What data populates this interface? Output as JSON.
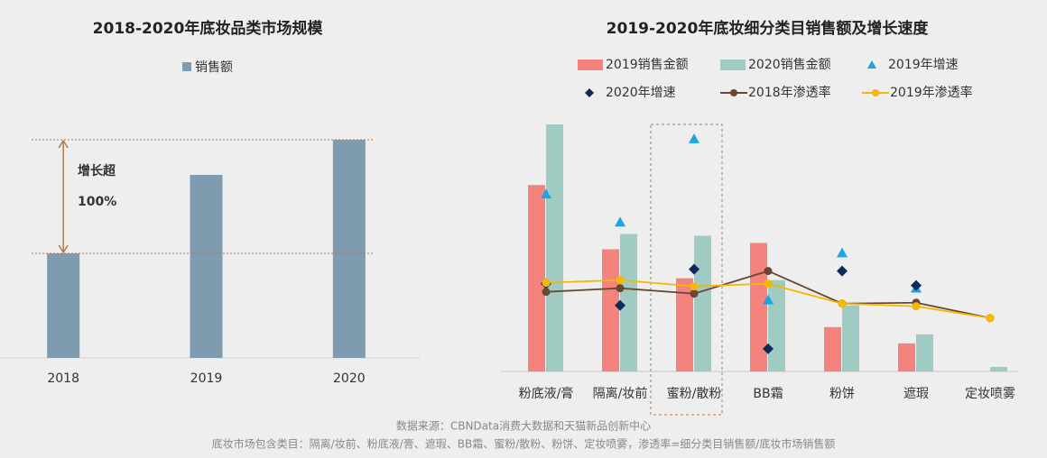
{
  "chart_data": [
    {
      "type": "bar",
      "title": "2018-2020年底妆品类市场规模",
      "categories": [
        "2018",
        "2019",
        "2020"
      ],
      "series": [
        {
          "name": "销售额",
          "color": "#7f9bb0",
          "values": [
            116,
            203,
            242
          ]
        }
      ],
      "ylim": [
        0,
        260
      ],
      "annotation_lines": [
        "增长超",
        "100%"
      ],
      "annotation_colors": [
        "#111111",
        "#b07a4e"
      ]
    },
    {
      "type": "combo",
      "title": "2019-2020年底妆细分类目销售额及增长速度",
      "categories": [
        "粉底液/膏",
        "隔离/妆前",
        "蜜粉/散粉",
        "BB霜",
        "粉饼",
        "遮瑕",
        "定妆喷雾"
      ],
      "series": [
        {
          "name": "2019销售金额",
          "type": "bar",
          "color": "#f4837d",
          "values": [
            206,
            135,
            103,
            142,
            49,
            31,
            null
          ]
        },
        {
          "name": "2020销售金额",
          "type": "bar",
          "color": "#9fcbc3",
          "values": [
            273,
            152,
            150,
            101,
            73,
            41,
            5
          ]
        },
        {
          "name": "2019年增速",
          "type": "scatter",
          "marker": "triangle",
          "color": "#1ea4e0",
          "values": [
            196,
            165,
            257,
            79,
            131,
            92,
            null
          ]
        },
        {
          "name": "2020年增速",
          "type": "scatter",
          "marker": "diamond",
          "color": "#0d2a5c",
          "values": [
            97,
            73,
            113,
            25,
            111,
            95,
            null
          ]
        },
        {
          "name": "2018年渗透率",
          "type": "line",
          "color": "#6b4632",
          "values": [
            88,
            92,
            86,
            111,
            75,
            76,
            59
          ]
        },
        {
          "name": "2019年渗透率",
          "type": "line",
          "color": "#f5b800",
          "values": [
            98,
            101,
            94,
            97,
            75,
            72,
            59
          ]
        }
      ],
      "ylim": [
        0,
        280
      ]
    }
  ],
  "footnotes": [
    "数据来源：CBNData消费大数据和天猫新品创新中心",
    "底妆市场包含类目：隔离/妆前、粉底液/膏、遮瑕、BB霜、蜜粉/散粉、粉饼、定妆喷雾，渗透率=细分类目销售额/底妆市场销售额"
  ]
}
